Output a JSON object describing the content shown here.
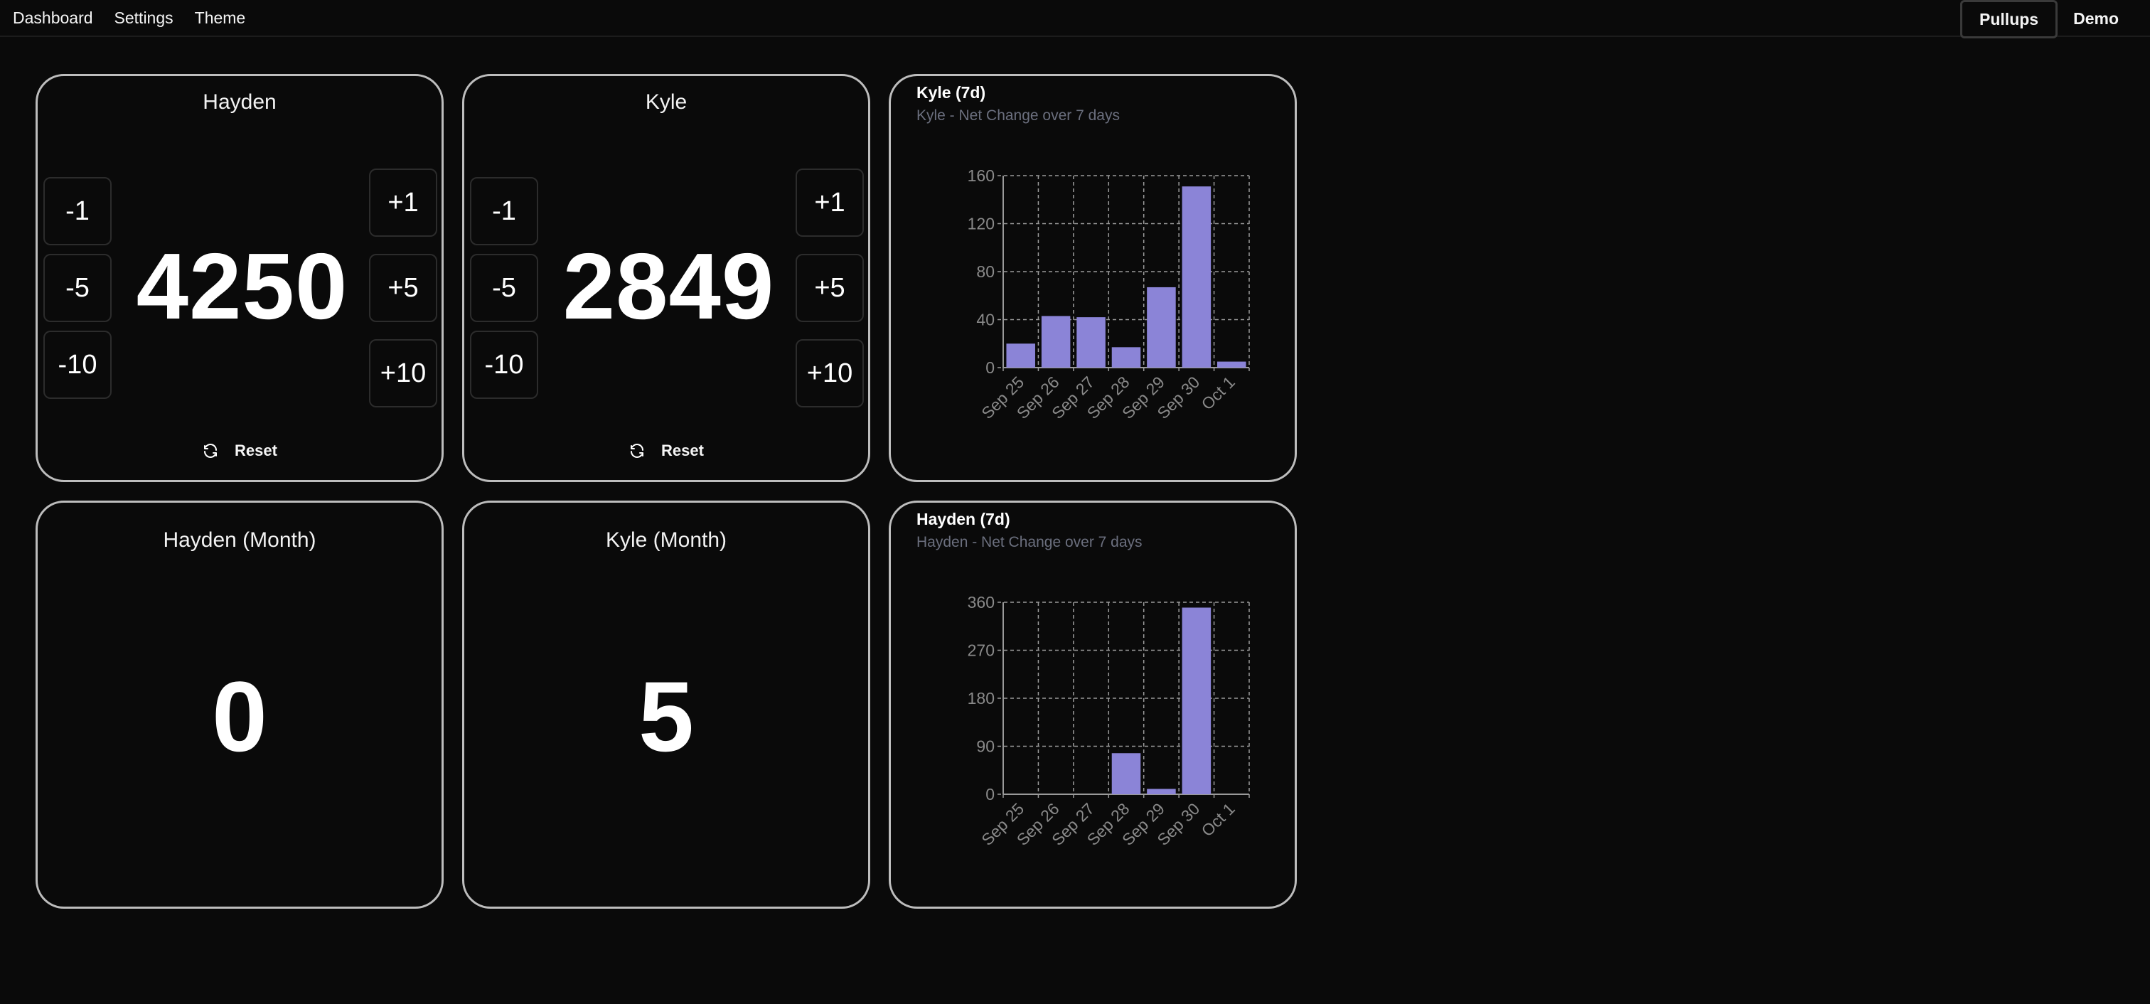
{
  "nav": {
    "links": [
      "Dashboard",
      "Settings",
      "Theme"
    ],
    "tabs": [
      "Pullups",
      "Demo"
    ],
    "active_tab": "Pullups"
  },
  "counters": [
    {
      "name": "Hayden",
      "value": "4250",
      "minus_buttons": [
        "-1",
        "-5",
        "-10"
      ],
      "plus_buttons": [
        "+1",
        "+5",
        "+10"
      ],
      "reset_label": "Reset"
    },
    {
      "name": "Kyle",
      "value": "2849",
      "minus_buttons": [
        "-1",
        "-5",
        "-10"
      ],
      "plus_buttons": [
        "+1",
        "+5",
        "+10"
      ],
      "reset_label": "Reset"
    }
  ],
  "month_cards": [
    {
      "title": "Hayden (Month)",
      "value": "0"
    },
    {
      "title": "Kyle (Month)",
      "value": "5"
    }
  ],
  "colors": {
    "bar": "#8b84d7",
    "axis_text": "#8a8a8a",
    "grid": "#9a9a9a",
    "card_border": "#bdbdbd"
  },
  "chart_data": [
    {
      "type": "bar",
      "title": "Kyle (7d)",
      "subtitle": "Kyle - Net Change over 7 days",
      "categories": [
        "Sep 25",
        "Sep 26",
        "Sep 27",
        "Sep 28",
        "Sep 29",
        "Sep 30",
        "Oct 1"
      ],
      "values": [
        20,
        43,
        42,
        17,
        67,
        151,
        5
      ],
      "ylim": [
        0,
        160
      ],
      "yticks": [
        0,
        40,
        80,
        120,
        160
      ],
      "grid": true
    },
    {
      "type": "bar",
      "title": "Hayden (7d)",
      "subtitle": "Hayden - Net Change over 7 days",
      "categories": [
        "Sep 25",
        "Sep 26",
        "Sep 27",
        "Sep 28",
        "Sep 29",
        "Sep 30",
        "Oct 1"
      ],
      "values": [
        0,
        0,
        0,
        77,
        10,
        350,
        0
      ],
      "ylim": [
        0,
        360
      ],
      "yticks": [
        0,
        90,
        180,
        270,
        360
      ],
      "grid": true
    }
  ]
}
